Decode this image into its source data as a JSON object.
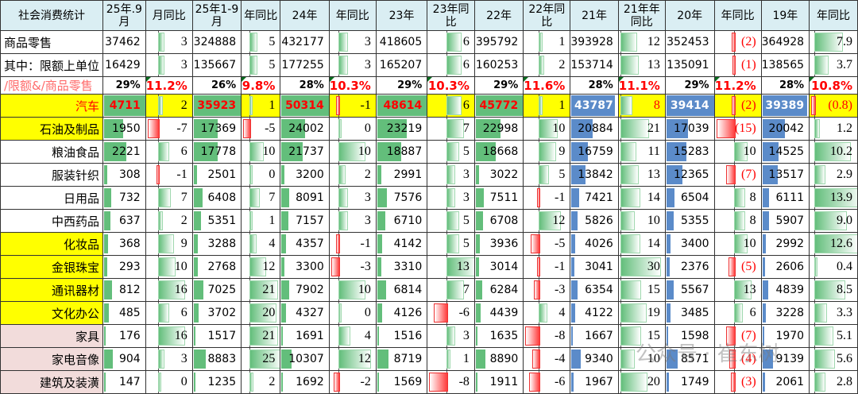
{
  "colors": {
    "header_bg": "#DAEEF3",
    "yellow": "#FFFF00",
    "pink": "#F2DCDB",
    "green_bar": "#63BE7B",
    "blue_bar": "#5B8BC9",
    "neg_bar": "#FF3B3B",
    "red_text": "#FF0000"
  },
  "headers": [
    "社会消费统计",
    "25年.9月",
    "月同比",
    "25年1-9月",
    "年同比",
    "24年",
    "年同比",
    "23年",
    "23年同比",
    "22年",
    "22年同比",
    "21年",
    "21年年同比",
    "20年",
    "年同比",
    "19年",
    "年同比"
  ],
  "rows": [
    {
      "label": "商品零售",
      "style": "plain",
      "cells": [
        "37462",
        "3",
        "324888",
        "5",
        "432177",
        "3",
        "418605",
        "6",
        "395792",
        "1",
        "393928",
        "12",
        "352453",
        "(2)",
        "364928",
        "7.9"
      ]
    },
    {
      "label": "其中：限额上单位",
      "style": "plain",
      "cells": [
        "16429",
        "3",
        "135667",
        "5",
        "177255",
        "3",
        "165207",
        "6",
        "160253",
        "2",
        "153714",
        "13",
        "135091",
        "(1)",
        "138565",
        "3.7"
      ]
    },
    {
      "label": "/限额&/商品零售",
      "style": "ratio",
      "cells": [
        "29%",
        "11.2%",
        "26%",
        "9.8%",
        "28%",
        "10.3%",
        "29%",
        "10.3%",
        "29%",
        "11.6%",
        "28%",
        "11.1%",
        "29%",
        "11.2%",
        "28%",
        "10.8%"
      ]
    },
    {
      "label": "汽车",
      "style": "car",
      "cells": [
        "4711",
        "2",
        "35923",
        "1",
        "50314",
        "-1",
        "48614",
        "6",
        "45772",
        "1",
        "43787",
        "8",
        "39414",
        "(2)",
        "39389",
        "(0.8)"
      ]
    },
    {
      "label": "石油及制品",
      "style": "yellow",
      "cells": [
        "1950",
        "-7",
        "17369",
        "-5",
        "24002",
        "0",
        "23219",
        "7",
        "22998",
        "10",
        "20884",
        "21",
        "17039",
        "(15)",
        "20042",
        "1.2"
      ]
    },
    {
      "label": "粮油食品",
      "style": "white",
      "cells": [
        "2221",
        "6",
        "17778",
        "10",
        "21737",
        "10",
        "18887",
        "5",
        "18668",
        "9",
        "16759",
        "11",
        "15283",
        "10",
        "14525",
        "10.2"
      ]
    },
    {
      "label": "服装针织",
      "style": "white",
      "cells": [
        "308",
        "-1",
        "2501",
        "0",
        "3200",
        "2",
        "2991",
        "3",
        "3022",
        "5",
        "13842",
        "13",
        "12365",
        "(7)",
        "13517",
        "2.9"
      ]
    },
    {
      "label": "日用品",
      "style": "white",
      "cells": [
        "732",
        "7",
        "6408",
        "7",
        "8091",
        "3",
        "7576",
        "3",
        "7511",
        "-1",
        "7421",
        "14",
        "6504",
        "8",
        "6111",
        "13.9"
      ]
    },
    {
      "label": "中西药品",
      "style": "white",
      "cells": [
        "637",
        "2",
        "5351",
        "1",
        "7157",
        "3",
        "6710",
        "5",
        "6708",
        "12",
        "5826",
        "10",
        "5355",
        "8",
        "5907",
        "9.0"
      ]
    },
    {
      "label": "化妆品",
      "style": "yellow",
      "cells": [
        "368",
        "9",
        "3288",
        "4",
        "4357",
        "-1",
        "4142",
        "5",
        "3936",
        "-5",
        "4026",
        "14",
        "3400",
        "10",
        "2992",
        "12.6"
      ]
    },
    {
      "label": "金银珠宝",
      "style": "yellow",
      "cells": [
        "293",
        "10",
        "2768",
        "12",
        "3300",
        "-3",
        "3310",
        "13",
        "3014",
        "-1",
        "3041",
        "30",
        "2376",
        "(5)",
        "2606",
        "0.4"
      ]
    },
    {
      "label": "通讯器材",
      "style": "yellow",
      "cells": [
        "812",
        "16",
        "7025",
        "21",
        "7902",
        "10",
        "6814",
        "7",
        "6284",
        "-3",
        "6354",
        "15",
        "5567",
        "13",
        "4839",
        "8.5"
      ]
    },
    {
      "label": "文化办公",
      "style": "yellow",
      "cells": [
        "485",
        "6",
        "3702",
        "20",
        "4327",
        "0",
        "4126",
        "-6",
        "4439",
        "4",
        "4122",
        "19",
        "3485",
        "6",
        "3228",
        "3.3"
      ]
    },
    {
      "label": "家具",
      "style": "pink",
      "cells": [
        "176",
        "16",
        "1517",
        "21",
        "1691",
        "4",
        "1516",
        "3",
        "1635",
        "-8",
        "1667",
        "15",
        "1598",
        "(7)",
        "1970",
        "5.1"
      ]
    },
    {
      "label": "家电音像",
      "style": "pink",
      "cells": [
        "904",
        "3",
        "8883",
        "25",
        "10307",
        "12",
        "8719",
        "1",
        "8890",
        "-4",
        "9340",
        "10",
        "8571",
        "(4)",
        "9139",
        "5.6"
      ]
    },
    {
      "label": "建筑及装潢",
      "style": "pink",
      "cells": [
        "147",
        "0",
        "1235",
        "2",
        "1692",
        "-2",
        "1569",
        "-8",
        "1911",
        "-6",
        "1967",
        "20",
        "1749",
        "(3)",
        "2061",
        "2.8"
      ]
    }
  ],
  "watermark": "公众号 · 崔东树"
}
